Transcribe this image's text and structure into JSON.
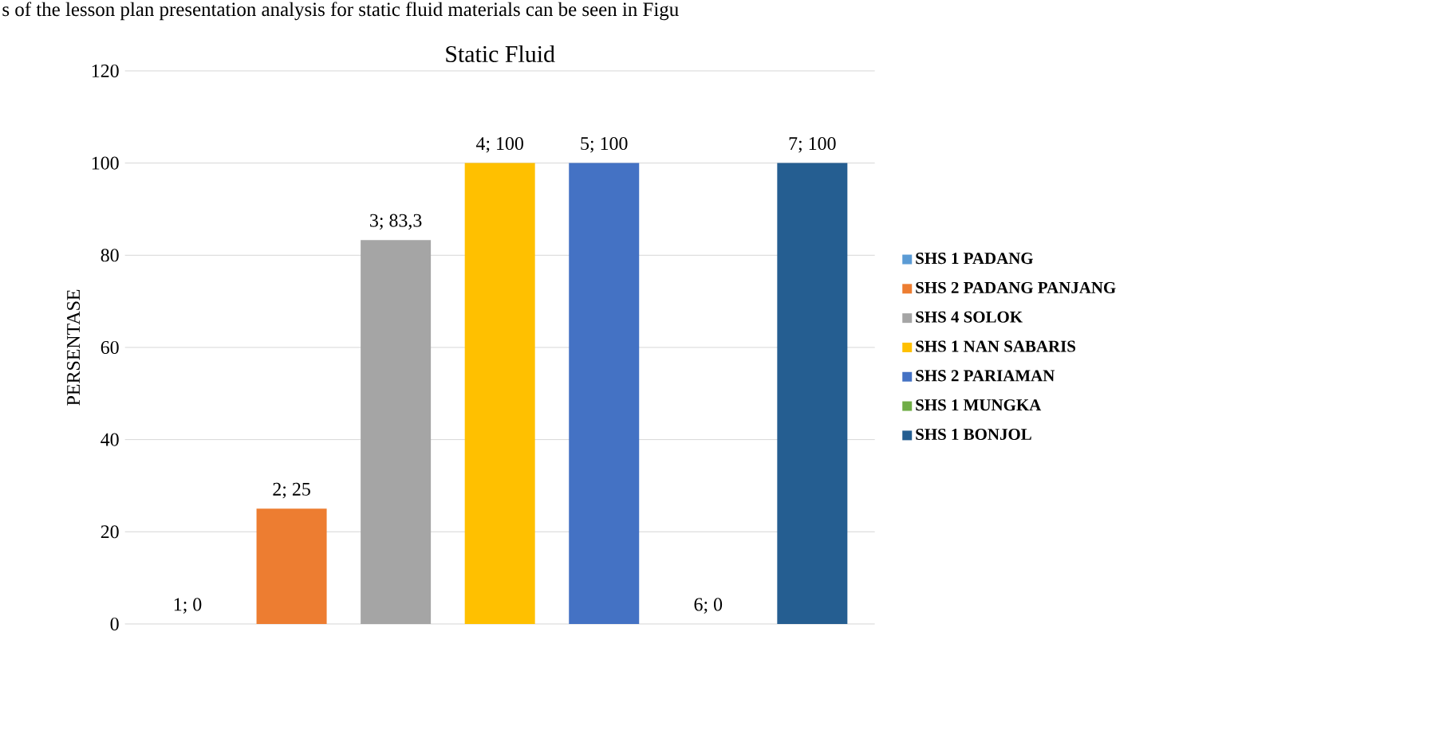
{
  "chart_data": {
    "type": "bar",
    "title": "Static Fluid",
    "ylabel": "PERSENTASE",
    "annotations": [
      "s of the lesson plan presentation analysis for static fluid materials can be seen in Figu"
    ],
    "categories": [
      null,
      null,
      null,
      null,
      null,
      null,
      null
    ],
    "ylim": [
      0,
      120
    ],
    "yticks": [
      0,
      20,
      40,
      60,
      80,
      100,
      120
    ],
    "grid": "y",
    "legend": "right",
    "series": [
      {
        "name": "SHS 1 PADANG",
        "color": "#5b9bd5",
        "values": [
          0,
          null,
          null,
          null,
          null,
          null,
          null
        ],
        "value_labels": [
          "1; 0",
          null,
          null,
          null,
          null,
          null,
          null
        ]
      },
      {
        "name": "SHS 2 PADANG PANJANG",
        "color": "#ed7d31",
        "values": [
          null,
          25,
          null,
          null,
          null,
          null,
          null
        ],
        "value_labels": [
          null,
          "2; 25",
          null,
          null,
          null,
          null,
          null
        ]
      },
      {
        "name": "SHS 4 SOLOK",
        "color": "#a5a5a5",
        "values": [
          null,
          null,
          83.3,
          null,
          null,
          null,
          null
        ],
        "value_labels": [
          null,
          null,
          "3; 83,3",
          null,
          null,
          null,
          null
        ]
      },
      {
        "name": "SHS 1 NAN SABARIS",
        "color": "#ffc000",
        "values": [
          null,
          null,
          null,
          100,
          null,
          null,
          null
        ],
        "value_labels": [
          null,
          null,
          null,
          "4; 100",
          null,
          null,
          null
        ]
      },
      {
        "name": "SHS 2 PARIAMAN",
        "color": "#4472c4",
        "values": [
          null,
          null,
          null,
          null,
          100,
          null,
          null
        ],
        "value_labels": [
          null,
          null,
          null,
          null,
          "5; 100",
          null,
          null
        ]
      },
      {
        "name": "SHS 1 MUNGKA",
        "color": "#70ad47",
        "values": [
          null,
          null,
          null,
          null,
          null,
          0,
          null
        ],
        "value_labels": [
          null,
          null,
          null,
          null,
          null,
          "6; 0",
          null
        ]
      },
      {
        "name": "SHS 1 BONJOL",
        "color": "#255e91",
        "values": [
          null,
          null,
          null,
          null,
          null,
          null,
          100
        ],
        "value_labels": [
          null,
          null,
          null,
          null,
          null,
          null,
          "7; 100"
        ]
      }
    ]
  }
}
